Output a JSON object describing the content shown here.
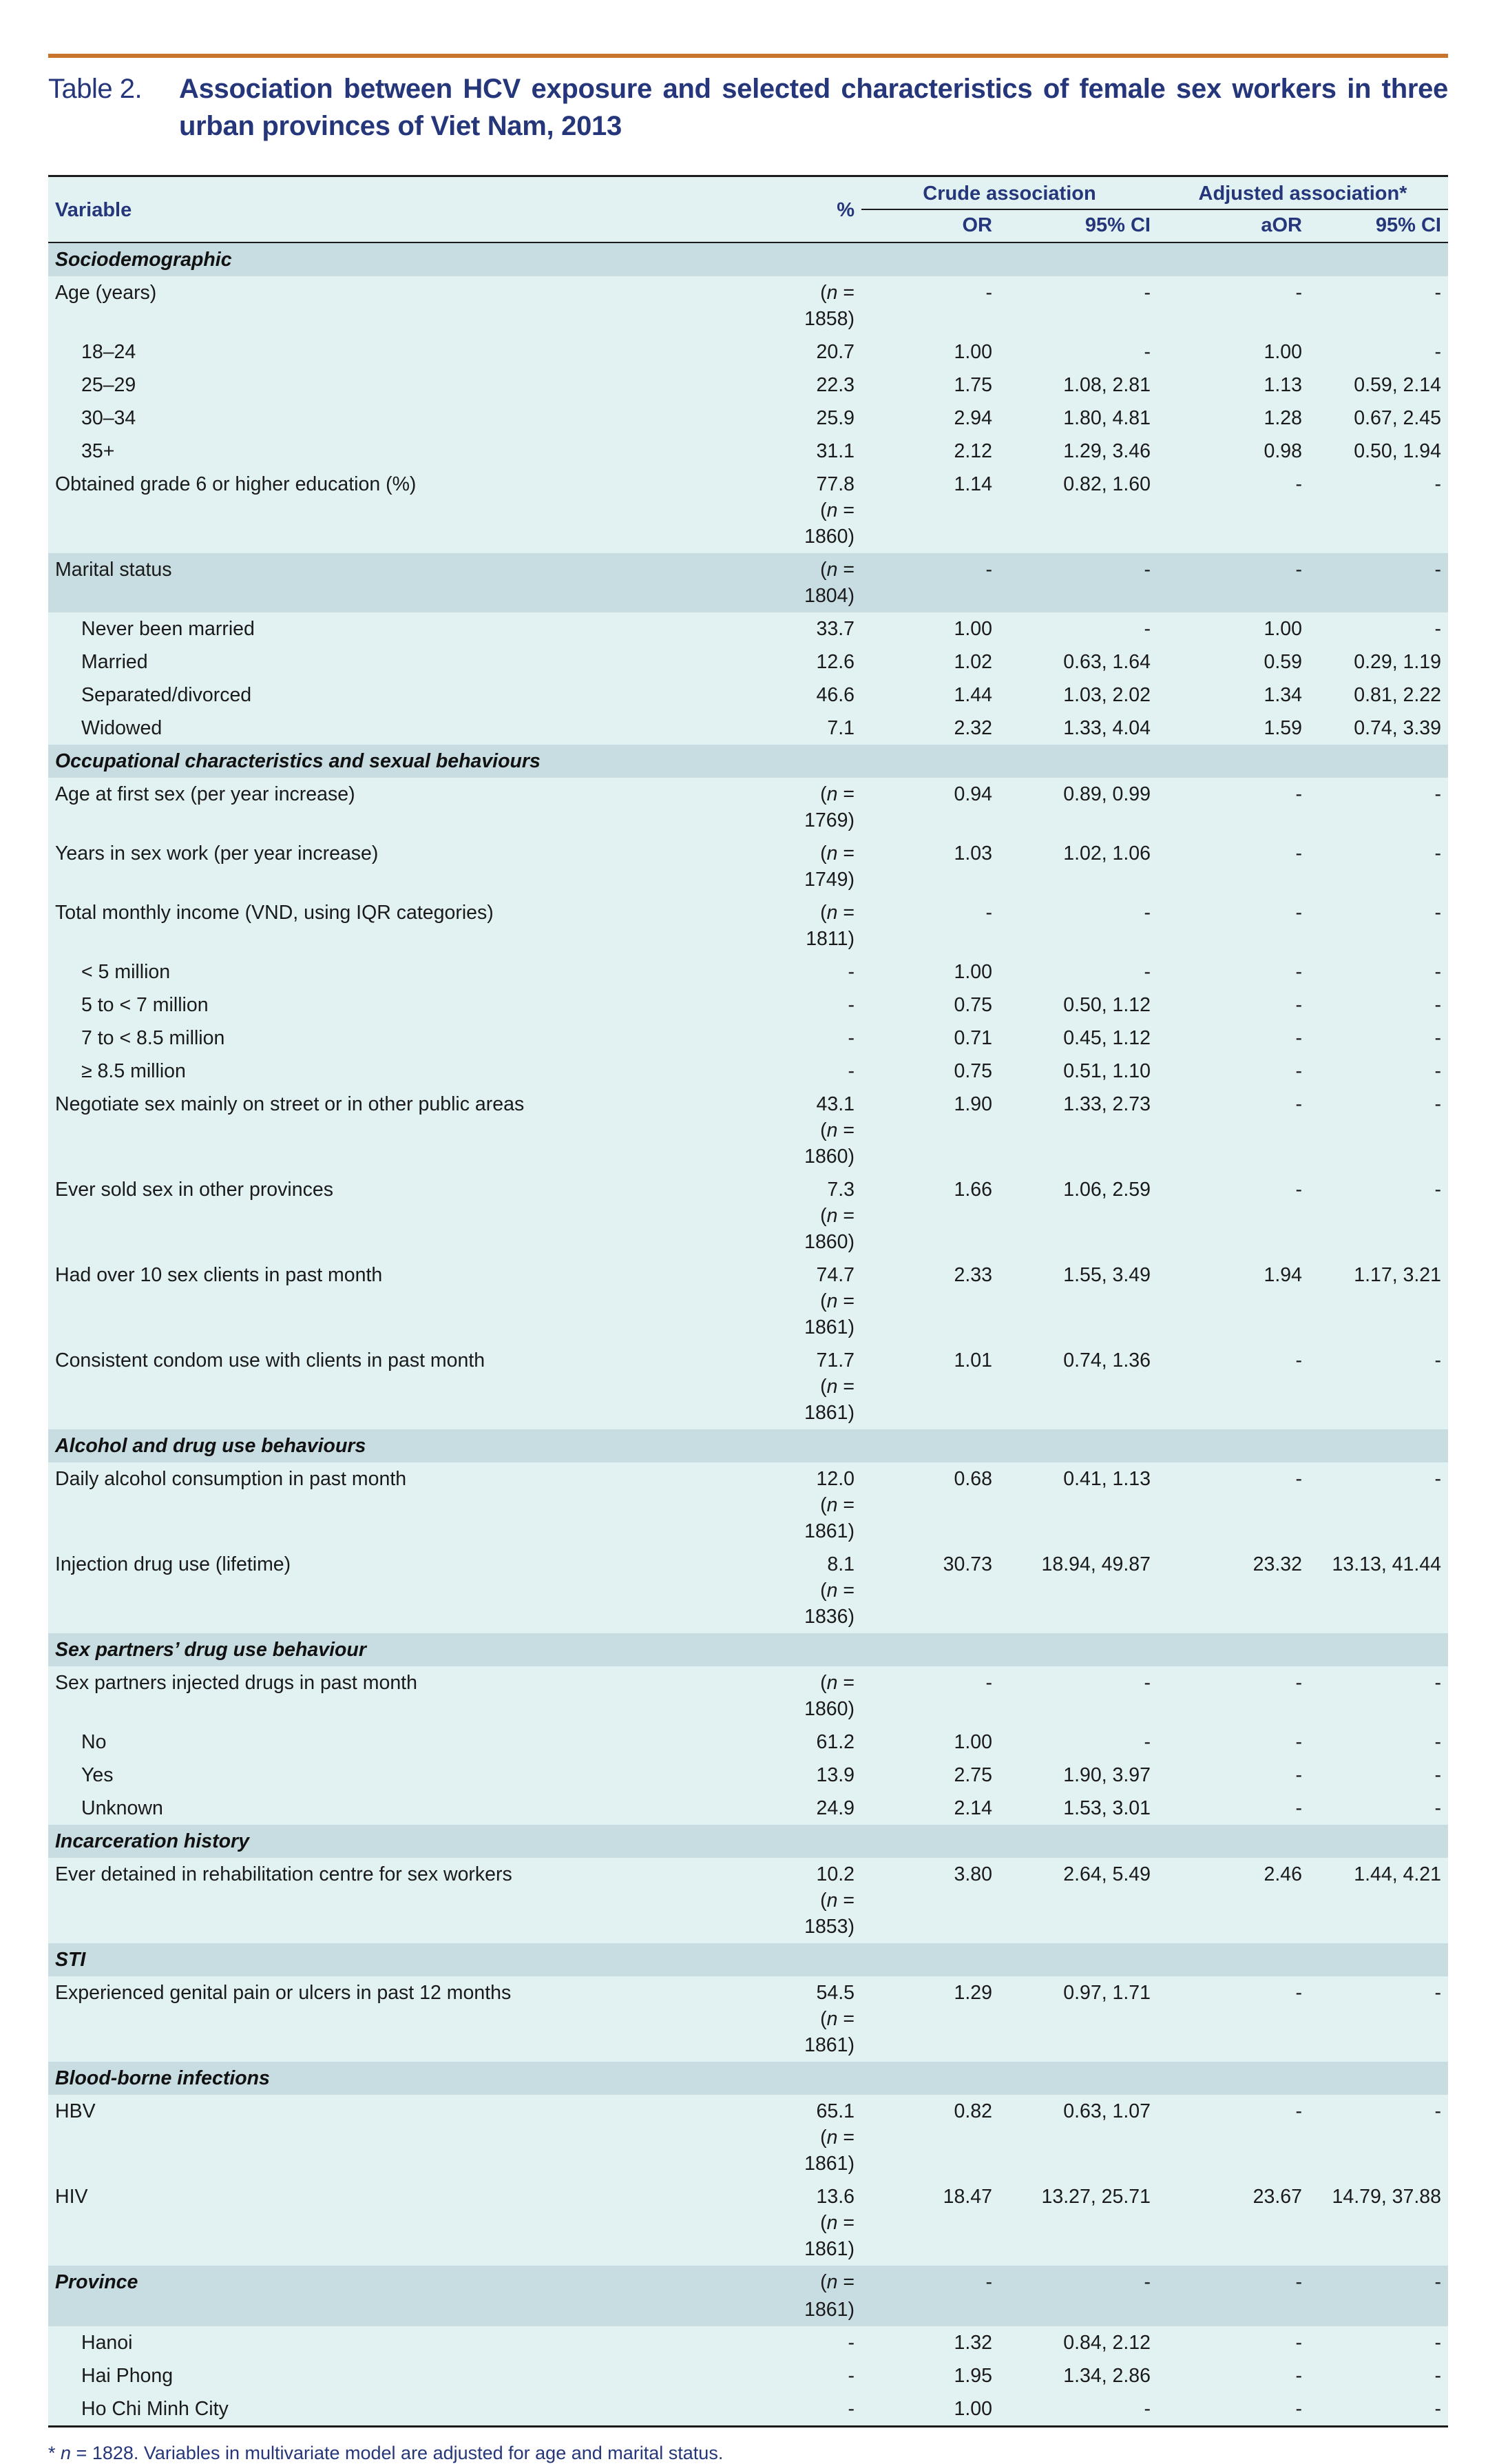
{
  "caption": {
    "label": "Table 2.",
    "title": "Association between HCV exposure and selected characteristics of female sex workers in three urban provinces of Viet Nam, 2013"
  },
  "header": {
    "variable": "Variable",
    "percent": "%",
    "crude": "Crude association",
    "adjusted": "Adjusted association*",
    "or": "OR",
    "ci1": "95% CI",
    "aor": "aOR",
    "ci2": "95% CI"
  },
  "rows": [
    {
      "kind": "sec",
      "var": "Sociodemographic"
    },
    {
      "var": "Age (years)",
      "pct": "",
      "n": "1858",
      "or": "-",
      "ci1": "-",
      "aor": "-",
      "ci2": "-"
    },
    {
      "kind": "sub",
      "var": "18–24",
      "pct": "20.7",
      "or": "1.00",
      "ci1": "-",
      "aor": "1.00",
      "ci2": "-"
    },
    {
      "kind": "sub",
      "var": "25–29",
      "pct": "22.3",
      "or": "1.75",
      "ci1": "1.08, 2.81",
      "aor": "1.13",
      "ci2": "0.59, 2.14"
    },
    {
      "kind": "sub",
      "var": "30–34",
      "pct": "25.9",
      "or": "2.94",
      "ci1": "1.80, 4.81",
      "aor": "1.28",
      "ci2": "0.67, 2.45"
    },
    {
      "kind": "sub",
      "var": "35+",
      "pct": "31.1",
      "or": "2.12",
      "ci1": "1.29, 3.46",
      "aor": "0.98",
      "ci2": "0.50, 1.94"
    },
    {
      "var": "Obtained grade 6 or higher education (%)",
      "pct": "77.8",
      "n2": "1860",
      "or": "1.14",
      "ci1": "0.82, 1.60",
      "aor": "-",
      "ci2": "-"
    },
    {
      "kind": "band",
      "var": "Marital status",
      "pct": "",
      "n": "1804",
      "or": "-",
      "ci1": "-",
      "aor": "-",
      "ci2": "-"
    },
    {
      "kind": "sub",
      "var": "Never been married",
      "pct": "33.7",
      "or": "1.00",
      "ci1": "-",
      "aor": "1.00",
      "ci2": "-"
    },
    {
      "kind": "sub",
      "var": "Married",
      "pct": "12.6",
      "or": "1.02",
      "ci1": "0.63, 1.64",
      "aor": "0.59",
      "ci2": "0.29, 1.19"
    },
    {
      "kind": "sub",
      "var": "Separated/divorced",
      "pct": "46.6",
      "or": "1.44",
      "ci1": "1.03, 2.02",
      "aor": "1.34",
      "ci2": "0.81, 2.22"
    },
    {
      "kind": "sub",
      "var": "Widowed",
      "pct": "7.1",
      "or": "2.32",
      "ci1": "1.33, 4.04",
      "aor": "1.59",
      "ci2": "0.74, 3.39"
    },
    {
      "kind": "sec",
      "var": "Occupational characteristics and sexual behaviours"
    },
    {
      "var": "Age at first sex (per year increase)",
      "pct": "",
      "n": "1769",
      "or": "0.94",
      "ci1": "0.89, 0.99",
      "aor": "-",
      "ci2": "-"
    },
    {
      "var": "Years in sex work (per year increase)",
      "pct": "",
      "n": "1749",
      "or": "1.03",
      "ci1": "1.02, 1.06",
      "aor": "-",
      "ci2": "-"
    },
    {
      "var": "Total monthly income (VND, using IQR categories)",
      "pct": "",
      "n": "1811",
      "or": "-",
      "ci1": "-",
      "aor": "-",
      "ci2": "-"
    },
    {
      "kind": "sub",
      "var": "< 5 million",
      "pct": "-",
      "or": "1.00",
      "ci1": "-",
      "aor": "-",
      "ci2": "-"
    },
    {
      "kind": "sub",
      "var": "5 to < 7 million",
      "pct": "-",
      "or": "0.75",
      "ci1": "0.50, 1.12",
      "aor": "-",
      "ci2": "-"
    },
    {
      "kind": "sub",
      "var": "7 to < 8.5 million",
      "pct": "-",
      "or": "0.71",
      "ci1": "0.45, 1.12",
      "aor": "-",
      "ci2": "-"
    },
    {
      "kind": "sub",
      "var": "≥ 8.5 million",
      "pct": "-",
      "or": "0.75",
      "ci1": "0.51, 1.10",
      "aor": "-",
      "ci2": "-"
    },
    {
      "var": "Negotiate sex mainly on street or in other public areas",
      "pct": "43.1",
      "n2": "1860",
      "or": "1.90",
      "ci1": "1.33, 2.73",
      "aor": "-",
      "ci2": "-"
    },
    {
      "var": "Ever sold sex in other provinces",
      "pct": "7.3",
      "n2": "1860",
      "or": "1.66",
      "ci1": "1.06, 2.59",
      "aor": "-",
      "ci2": "-"
    },
    {
      "var": "Had over 10 sex clients in past month",
      "pct": "74.7",
      "n2": "1861",
      "or": "2.33",
      "ci1": "1.55, 3.49",
      "aor": "1.94",
      "ci2": "1.17, 3.21"
    },
    {
      "var": "Consistent condom use with clients in past month",
      "pct": "71.7",
      "n2": "1861",
      "or": "1.01",
      "ci1": "0.74, 1.36",
      "aor": "-",
      "ci2": "-"
    },
    {
      "kind": "sec",
      "var": "Alcohol and drug use behaviours"
    },
    {
      "var": "Daily alcohol consumption in past month",
      "pct": "12.0",
      "n2": "1861",
      "or": "0.68",
      "ci1": "0.41, 1.13",
      "aor": "-",
      "ci2": "-"
    },
    {
      "var": "Injection drug use (lifetime)",
      "pct": "8.1",
      "n2": "1836",
      "or": "30.73",
      "ci1": "18.94, 49.87",
      "aor": "23.32",
      "ci2": "13.13, 41.44"
    },
    {
      "kind": "sec",
      "var": "Sex partners’ drug use behaviour"
    },
    {
      "var": "Sex partners injected drugs in past month",
      "pct": "",
      "n": "1860",
      "or": "-",
      "ci1": "-",
      "aor": "-",
      "ci2": "-"
    },
    {
      "kind": "sub",
      "var": "No",
      "pct": "61.2",
      "or": "1.00",
      "ci1": "-",
      "aor": "-",
      "ci2": "-"
    },
    {
      "kind": "sub",
      "var": "Yes",
      "pct": "13.9",
      "or": "2.75",
      "ci1": "1.90, 3.97",
      "aor": "-",
      "ci2": "-"
    },
    {
      "kind": "sub",
      "var": "Unknown",
      "pct": "24.9",
      "or": "2.14",
      "ci1": "1.53, 3.01",
      "aor": "-",
      "ci2": "-"
    },
    {
      "kind": "sec",
      "var": "Incarceration history"
    },
    {
      "var": "Ever detained in rehabilitation centre for sex workers",
      "pct": "10.2",
      "n2": "1853",
      "or": "3.80",
      "ci1": "2.64, 5.49",
      "aor": "2.46",
      "ci2": "1.44, 4.21"
    },
    {
      "kind": "sec",
      "var": "STI"
    },
    {
      "var": "Experienced genital pain or ulcers in past 12 months",
      "pct": "54.5",
      "n2": "1861",
      "or": "1.29",
      "ci1": "0.97, 1.71",
      "aor": "-",
      "ci2": "-"
    },
    {
      "kind": "sec",
      "var": "Blood-borne infections"
    },
    {
      "var": "HBV",
      "pct": "65.1",
      "n2": "1861",
      "or": "0.82",
      "ci1": "0.63, 1.07",
      "aor": "-",
      "ci2": "-"
    },
    {
      "var": "HIV",
      "pct": "13.6",
      "n2": "1861",
      "or": "18.47",
      "ci1": "13.27, 25.71",
      "aor": "23.67",
      "ci2": "14.79, 37.88"
    },
    {
      "kind": "secdata",
      "var": "Province",
      "pct": "",
      "n": "1861",
      "or": "-",
      "ci1": "-",
      "aor": "-",
      "ci2": "-"
    },
    {
      "kind": "sub",
      "var": "Hanoi",
      "pct": "-",
      "or": "1.32",
      "ci1": "0.84, 2.12",
      "aor": "-",
      "ci2": "-"
    },
    {
      "kind": "sub",
      "var": "Hai Phong",
      "pct": "-",
      "or": "1.95",
      "ci1": "1.34, 2.86",
      "aor": "-",
      "ci2": "-"
    },
    {
      "kind": "sub",
      "var": "Ho Chi Minh City",
      "pct": "-",
      "or": "1.00",
      "ci1": "-",
      "aor": "-",
      "ci2": "-"
    }
  ],
  "footnote": {
    "star": "* ",
    "n_symbol": "n",
    "text": " = 1828. Variables in multivariate model are adjusted for age and marital status."
  },
  "colors": {
    "rule": "#c8742c",
    "title": "#25377a",
    "row_bg": "#e2f1f1",
    "section_bg": "#c7dde2"
  }
}
